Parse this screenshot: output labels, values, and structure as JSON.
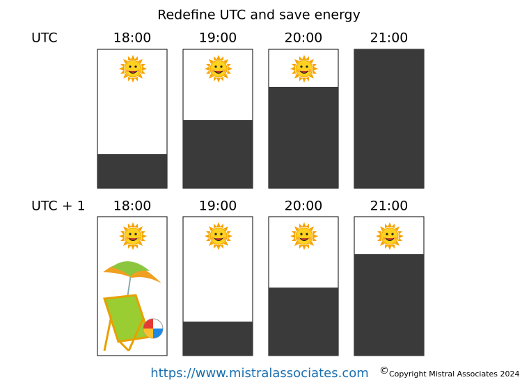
{
  "title": "Redefine UTC and save energy",
  "rows": [
    {
      "label": "UTC",
      "times": [
        "18:00",
        "19:00",
        "20:00",
        "21:00"
      ]
    },
    {
      "label": "UTC + 1",
      "times": [
        "18:00",
        "19:00",
        "20:00",
        "21:00"
      ]
    }
  ],
  "footer": {
    "url": "https://www.mistralassociates.com",
    "symbol": "©",
    "copyright": "Copyright Mistral Associates 2024"
  }
}
